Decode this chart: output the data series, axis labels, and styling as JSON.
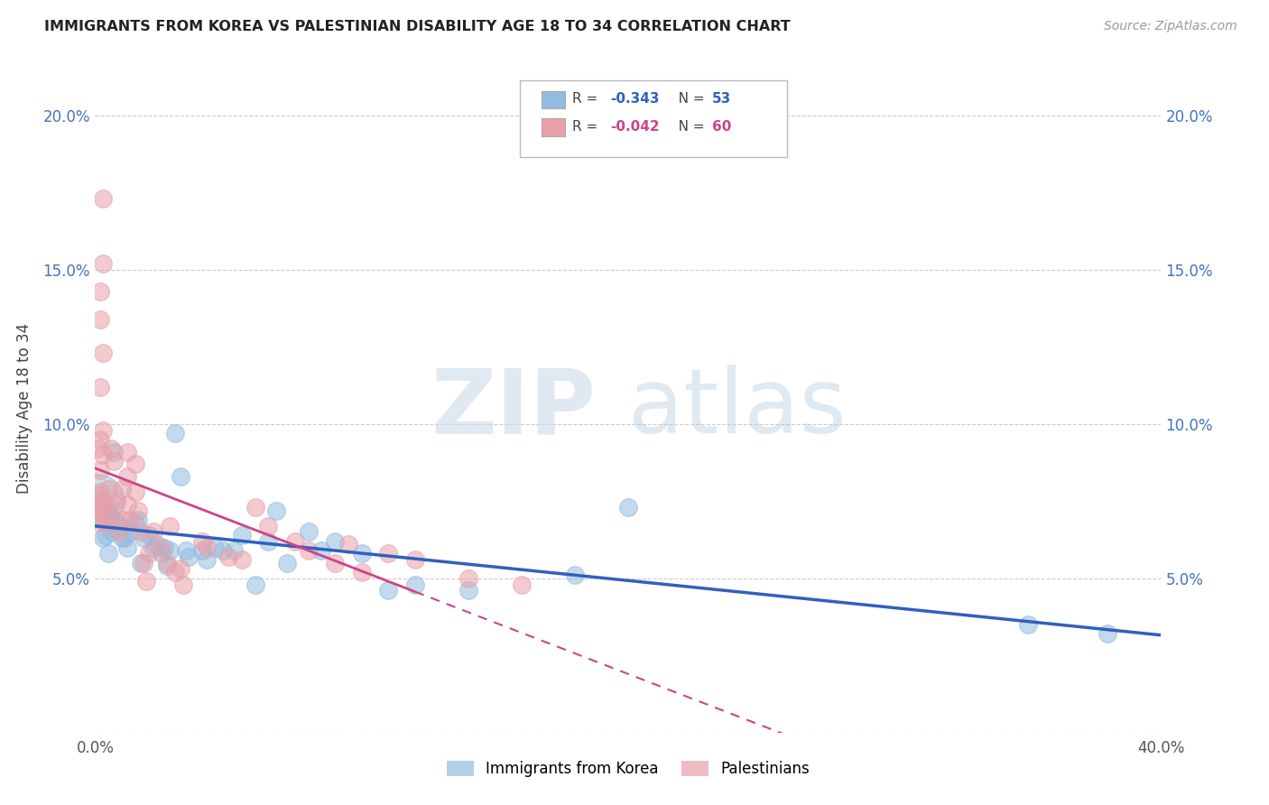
{
  "title": "IMMIGRANTS FROM KOREA VS PALESTINIAN DISABILITY AGE 18 TO 34 CORRELATION CHART",
  "source": "Source: ZipAtlas.com",
  "ylabel": "Disability Age 18 to 34",
  "xlim": [
    0.0,
    0.4
  ],
  "ylim": [
    0.0,
    0.21
  ],
  "ytick_labels": [
    "",
    "5.0%",
    "10.0%",
    "15.0%",
    "20.0%"
  ],
  "ytick_values": [
    0.0,
    0.05,
    0.1,
    0.15,
    0.2
  ],
  "xtick_values": [
    0.0,
    0.05,
    0.1,
    0.15,
    0.2,
    0.25,
    0.3,
    0.35,
    0.4
  ],
  "korea_R": "-0.343",
  "korea_N": "53",
  "pal_R": "-0.042",
  "pal_N": "60",
  "korea_color": "#92bce0",
  "pal_color": "#e8a0a8",
  "korea_line_color": "#3060c0",
  "pal_line_color": "#cc4488",
  "pal_line_solid_end": 0.12,
  "watermark_zip": "ZIP",
  "watermark_atlas": "atlas",
  "background_color": "#ffffff",
  "grid_color": "#cccccc",
  "right_tick_color": "#4472c4",
  "korea_points": [
    [
      0.001,
      0.075
    ],
    [
      0.002,
      0.074
    ],
    [
      0.003,
      0.069
    ],
    [
      0.003,
      0.063
    ],
    [
      0.004,
      0.072
    ],
    [
      0.004,
      0.064
    ],
    [
      0.005,
      0.058
    ],
    [
      0.005,
      0.072
    ],
    [
      0.006,
      0.065
    ],
    [
      0.006,
      0.07
    ],
    [
      0.007,
      0.091
    ],
    [
      0.008,
      0.068
    ],
    [
      0.009,
      0.067
    ],
    [
      0.01,
      0.063
    ],
    [
      0.011,
      0.063
    ],
    [
      0.012,
      0.06
    ],
    [
      0.013,
      0.065
    ],
    [
      0.015,
      0.068
    ],
    [
      0.016,
      0.069
    ],
    [
      0.017,
      0.055
    ],
    [
      0.018,
      0.063
    ],
    [
      0.02,
      0.064
    ],
    [
      0.022,
      0.06
    ],
    [
      0.023,
      0.061
    ],
    [
      0.025,
      0.058
    ],
    [
      0.026,
      0.06
    ],
    [
      0.027,
      0.054
    ],
    [
      0.028,
      0.059
    ],
    [
      0.03,
      0.097
    ],
    [
      0.032,
      0.083
    ],
    [
      0.034,
      0.059
    ],
    [
      0.035,
      0.057
    ],
    [
      0.04,
      0.059
    ],
    [
      0.042,
      0.056
    ],
    [
      0.045,
      0.06
    ],
    [
      0.048,
      0.059
    ],
    [
      0.052,
      0.059
    ],
    [
      0.055,
      0.064
    ],
    [
      0.06,
      0.048
    ],
    [
      0.065,
      0.062
    ],
    [
      0.068,
      0.072
    ],
    [
      0.072,
      0.055
    ],
    [
      0.08,
      0.065
    ],
    [
      0.085,
      0.059
    ],
    [
      0.09,
      0.062
    ],
    [
      0.1,
      0.058
    ],
    [
      0.11,
      0.046
    ],
    [
      0.12,
      0.048
    ],
    [
      0.14,
      0.046
    ],
    [
      0.18,
      0.051
    ],
    [
      0.2,
      0.073
    ],
    [
      0.35,
      0.035
    ],
    [
      0.38,
      0.032
    ]
  ],
  "korea_big_point": [
    0.001,
    0.075
  ],
  "pal_points": [
    [
      0.001,
      0.092
    ],
    [
      0.001,
      0.077
    ],
    [
      0.001,
      0.073
    ],
    [
      0.001,
      0.068
    ],
    [
      0.002,
      0.134
    ],
    [
      0.002,
      0.143
    ],
    [
      0.002,
      0.112
    ],
    [
      0.002,
      0.095
    ],
    [
      0.002,
      0.085
    ],
    [
      0.002,
      0.078
    ],
    [
      0.002,
      0.072
    ],
    [
      0.003,
      0.173
    ],
    [
      0.003,
      0.152
    ],
    [
      0.003,
      0.123
    ],
    [
      0.003,
      0.098
    ],
    [
      0.003,
      0.09
    ],
    [
      0.003,
      0.075
    ],
    [
      0.004,
      0.068
    ],
    [
      0.005,
      0.079
    ],
    [
      0.005,
      0.074
    ],
    [
      0.005,
      0.07
    ],
    [
      0.006,
      0.092
    ],
    [
      0.007,
      0.088
    ],
    [
      0.008,
      0.075
    ],
    [
      0.009,
      0.065
    ],
    [
      0.01,
      0.079
    ],
    [
      0.01,
      0.069
    ],
    [
      0.012,
      0.091
    ],
    [
      0.012,
      0.083
    ],
    [
      0.012,
      0.074
    ],
    [
      0.013,
      0.069
    ],
    [
      0.015,
      0.087
    ],
    [
      0.015,
      0.078
    ],
    [
      0.016,
      0.072
    ],
    [
      0.017,
      0.065
    ],
    [
      0.018,
      0.055
    ],
    [
      0.019,
      0.049
    ],
    [
      0.02,
      0.058
    ],
    [
      0.022,
      0.065
    ],
    [
      0.025,
      0.06
    ],
    [
      0.027,
      0.055
    ],
    [
      0.028,
      0.067
    ],
    [
      0.03,
      0.052
    ],
    [
      0.032,
      0.053
    ],
    [
      0.033,
      0.048
    ],
    [
      0.04,
      0.062
    ],
    [
      0.042,
      0.06
    ],
    [
      0.05,
      0.057
    ],
    [
      0.055,
      0.056
    ],
    [
      0.06,
      0.073
    ],
    [
      0.065,
      0.067
    ],
    [
      0.075,
      0.062
    ],
    [
      0.08,
      0.059
    ],
    [
      0.09,
      0.055
    ],
    [
      0.095,
      0.061
    ],
    [
      0.1,
      0.052
    ],
    [
      0.11,
      0.058
    ],
    [
      0.12,
      0.056
    ],
    [
      0.14,
      0.05
    ],
    [
      0.16,
      0.048
    ]
  ],
  "marker_size": 200,
  "big_marker_size": 1800
}
